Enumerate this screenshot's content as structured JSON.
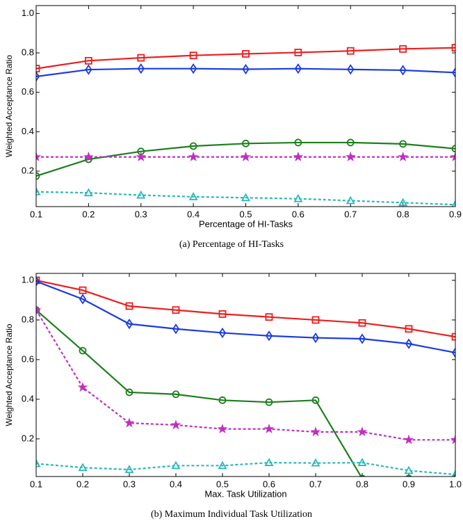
{
  "chart_data": [
    {
      "type": "line",
      "xlabel": "Percentage of HI-Tasks",
      "ylabel": "Weighted Acceptance Ratio",
      "caption": "(a) Percentage of HI-Tasks",
      "x": [
        0.1,
        0.2,
        0.3,
        0.4,
        0.5,
        0.6,
        0.7,
        0.8,
        0.9
      ],
      "xlim": [
        0.1,
        0.9
      ],
      "xticks": [
        0.1,
        0.2,
        0.3,
        0.4,
        0.5,
        0.6,
        0.7,
        0.8,
        0.9
      ],
      "ylim": [
        0.02,
        1.04
      ],
      "yticks": [
        0.2,
        0.4,
        0.6,
        0.8,
        {
          "value": 1,
          "label": "1.0"
        }
      ],
      "series": [
        {
          "color": "#ee1c1c",
          "marker": "square",
          "linestyle": "solid",
          "values": [
            0.72,
            0.76,
            0.775,
            0.787,
            0.795,
            0.802,
            0.81,
            0.82,
            0.826
          ]
        },
        {
          "color": "#1a3be0",
          "marker": "diamond",
          "linestyle": "solid",
          "values": [
            0.68,
            0.715,
            0.72,
            0.72,
            0.717,
            0.72,
            0.716,
            0.712,
            0.7
          ]
        },
        {
          "color": "#1c7f1c",
          "marker": "circle",
          "linestyle": "solid",
          "values": [
            0.175,
            0.26,
            0.3,
            0.327,
            0.34,
            0.345,
            0.345,
            0.338,
            0.314
          ]
        },
        {
          "color": "#c030c0",
          "marker": "star",
          "linestyle": "dotted",
          "values": [
            0.272,
            0.272,
            0.272,
            0.272,
            0.272,
            0.272,
            0.272,
            0.272,
            0.272
          ]
        },
        {
          "color": "#2ab8b8",
          "marker": "triangle",
          "linestyle": "dotted",
          "values": [
            0.095,
            0.09,
            0.078,
            0.07,
            0.065,
            0.06,
            0.05,
            0.04,
            0.03
          ]
        }
      ]
    },
    {
      "type": "line",
      "xlabel": "Max. Task Utilization",
      "ylabel": "Weighted Acceptance Ratio",
      "caption": "(b) Maximum Individual Task Utilization",
      "x": [
        0.1,
        0.2,
        0.3,
        0.4,
        0.5,
        0.6,
        0.7,
        0.8,
        0.9,
        1.0
      ],
      "xlim": [
        0.1,
        1.0
      ],
      "xticks": [
        0.1,
        0.2,
        0.3,
        0.4,
        0.5,
        0.6,
        0.7,
        0.8,
        0.9,
        {
          "value": 1,
          "label": "1.0"
        }
      ],
      "ylim": [
        0.01,
        1.035
      ],
      "yticks": [
        0.2,
        0.4,
        0.6,
        0.8,
        {
          "value": 1,
          "label": "1.0"
        }
      ],
      "series": [
        {
          "color": "#ee1c1c",
          "marker": "square",
          "linestyle": "solid",
          "values": [
            1.0,
            0.95,
            0.87,
            0.85,
            0.83,
            0.815,
            0.8,
            0.785,
            0.755,
            0.715
          ]
        },
        {
          "color": "#1a3be0",
          "marker": "diamond",
          "linestyle": "solid",
          "values": [
            0.995,
            0.905,
            0.78,
            0.755,
            0.735,
            0.72,
            0.71,
            0.705,
            0.68,
            0.635
          ]
        },
        {
          "color": "#1c7f1c",
          "marker": "circle",
          "linestyle": "solid",
          "values": [
            0.85,
            0.645,
            0.435,
            0.425,
            0.395,
            0.385,
            0.395,
            0,
            0,
            0
          ]
        },
        {
          "color": "#c030c0",
          "marker": "star",
          "linestyle": "dotted",
          "values": [
            0.85,
            0.46,
            0.28,
            0.27,
            0.25,
            0.25,
            0.235,
            0.235,
            0.195,
            0.195
          ]
        },
        {
          "color": "#2ab8b8",
          "marker": "triangle",
          "linestyle": "dotted",
          "values": [
            0.075,
            0.055,
            0.045,
            0.065,
            0.065,
            0.08,
            0.078,
            0.08,
            0.04,
            0.02
          ]
        }
      ]
    }
  ]
}
